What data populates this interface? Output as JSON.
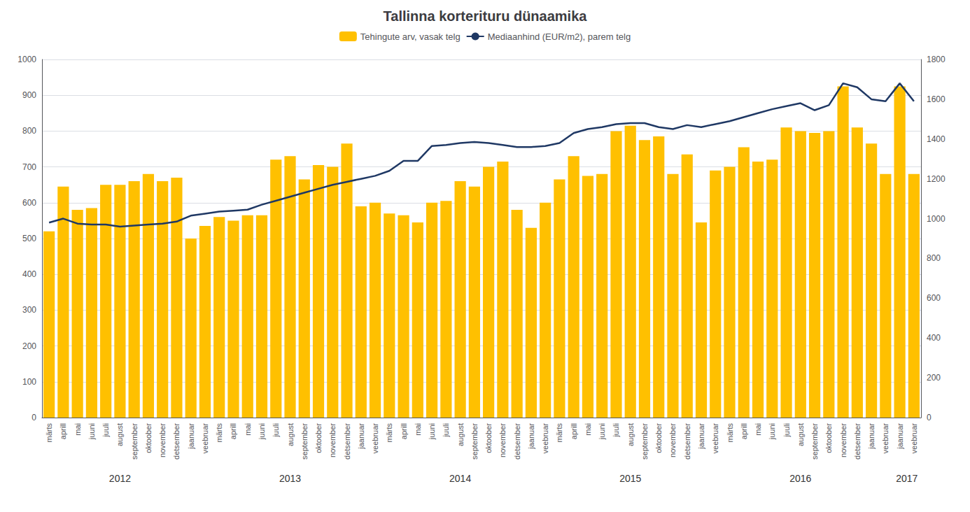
{
  "chart_data": {
    "type": "bar",
    "title": "Tallinna korterituru dünaamika",
    "categories": [
      "märts",
      "aprill",
      "mai",
      "juuni",
      "juuli",
      "august",
      "september",
      "oktoober",
      "november",
      "detsember",
      "jaanuar",
      "veebruar",
      "märts",
      "aprill",
      "mai",
      "juuni",
      "juuli",
      "august",
      "september",
      "oktoober",
      "november",
      "detsember",
      "jaanuar",
      "veebruar",
      "märts",
      "aprill",
      "mai",
      "juuni",
      "juuli",
      "august",
      "september",
      "oktoober",
      "november",
      "detsember",
      "jaanuar",
      "veebruar",
      "märts",
      "aprill",
      "mai",
      "juuni",
      "juuli",
      "august",
      "september",
      "oktoober",
      "november",
      "detsember",
      "jaanuar",
      "veebruar",
      "märts",
      "aprill",
      "mai",
      "juuni",
      "juuli",
      "august",
      "september",
      "oktoober",
      "november",
      "detsember",
      "jaanuar",
      "veebruar",
      "jaanuar",
      "veebruar"
    ],
    "series": [
      {
        "name": "Tehingute arv, vasak telg",
        "type": "bar",
        "color": "#FFC000",
        "values": [
          520,
          645,
          580,
          585,
          650,
          650,
          660,
          680,
          660,
          670,
          500,
          535,
          560,
          550,
          565,
          565,
          720,
          730,
          665,
          705,
          700,
          765,
          590,
          600,
          570,
          565,
          545,
          600,
          605,
          660,
          645,
          700,
          715,
          580,
          530,
          600,
          665,
          730,
          675,
          680,
          800,
          815,
          775,
          785,
          680,
          735,
          545,
          690,
          700,
          755,
          715,
          720,
          810,
          800,
          795,
          800,
          925,
          810,
          765,
          680,
          925,
          680
        ]
      },
      {
        "name": "Mediaanhind (EUR/m2), parem telg",
        "type": "line",
        "color": "#1F3864",
        "axis": "y2",
        "values": [
          980,
          1000,
          975,
          970,
          970,
          960,
          965,
          970,
          975,
          985,
          1015,
          1025,
          1035,
          1040,
          1045,
          1070,
          1090,
          1110,
          1130,
          1150,
          1170,
          1185,
          1200,
          1215,
          1240,
          1290,
          1290,
          1365,
          1370,
          1380,
          1385,
          1380,
          1370,
          1360,
          1360,
          1365,
          1380,
          1430,
          1450,
          1460,
          1475,
          1480,
          1480,
          1460,
          1450,
          1470,
          1460,
          1475,
          1490,
          1510,
          1530,
          1550,
          1565,
          1580,
          1545,
          1570,
          1680,
          1660,
          1600,
          1590,
          1680,
          1590
        ]
      }
    ],
    "ylim": [
      0,
      1000
    ],
    "yticks": [
      0,
      100,
      200,
      300,
      400,
      500,
      600,
      700,
      800,
      900,
      1000
    ],
    "y2lim": [
      0,
      1800
    ],
    "y2ticks": [
      0,
      200,
      400,
      600,
      800,
      1000,
      1200,
      1400,
      1600,
      1800
    ],
    "grid": true,
    "legend": "top",
    "annotations": [
      {
        "text": "2012",
        "x": 5.0
      },
      {
        "text": "2013",
        "x": 17.0
      },
      {
        "text": "2014",
        "x": 29.0
      },
      {
        "text": "2015",
        "x": 41.0
      },
      {
        "text": "2016",
        "x": 53.0
      },
      {
        "text": "2017",
        "x": 60.5
      }
    ]
  }
}
